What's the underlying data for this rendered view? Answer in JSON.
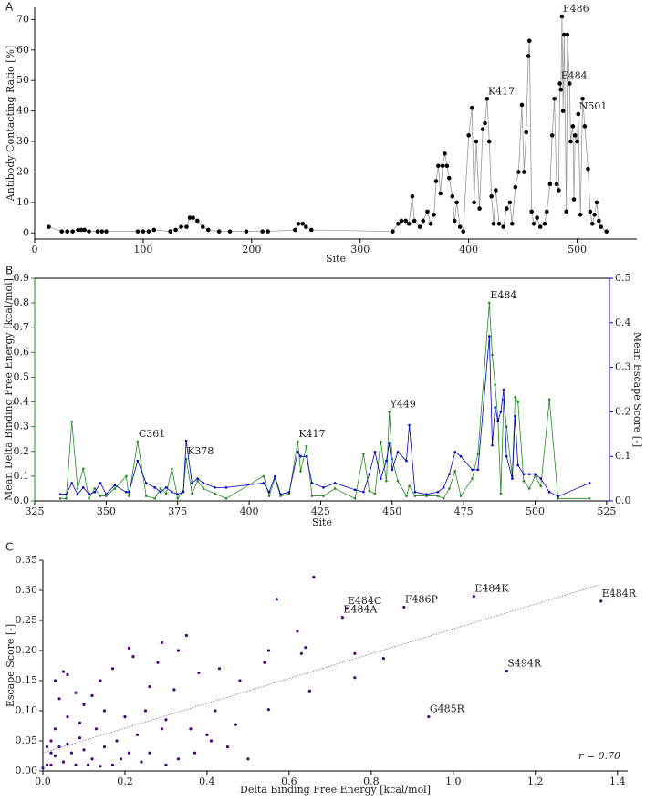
{
  "chart_data": [
    {
      "type": "line",
      "panel_label": "A",
      "x_label": "Site",
      "y_label": "Antibody Contacting Ratio [%]",
      "xlim": [
        0,
        555
      ],
      "ylim": [
        -2,
        74
      ],
      "xticks": [
        0,
        100,
        200,
        300,
        400,
        500
      ],
      "yticks": [
        0,
        10,
        20,
        30,
        40,
        50,
        60,
        70
      ],
      "color": "#000000",
      "line_color": "#999999",
      "x": [
        13,
        25,
        30,
        35,
        40,
        43,
        46,
        50,
        58,
        62,
        66,
        95,
        100,
        105,
        110,
        125,
        130,
        135,
        140,
        143,
        146,
        150,
        155,
        160,
        170,
        180,
        195,
        210,
        215,
        240,
        243,
        247,
        250,
        255,
        330,
        335,
        338,
        342,
        345,
        348,
        350,
        355,
        358,
        362,
        365,
        368,
        370,
        372,
        374,
        376,
        378,
        380,
        382,
        385,
        387,
        389,
        392,
        395,
        400,
        403,
        405,
        407,
        410,
        413,
        415,
        417,
        419,
        421,
        423,
        425,
        428,
        432,
        435,
        438,
        440,
        443,
        446,
        449,
        451,
        453,
        455,
        456,
        458,
        460,
        463,
        466,
        470,
        472,
        475,
        477,
        479,
        481,
        483,
        484,
        485,
        486,
        487,
        488,
        490,
        491,
        493,
        494,
        496,
        497,
        498,
        500,
        501,
        503,
        505,
        507,
        510,
        512,
        514,
        516,
        518,
        520,
        522,
        527
      ],
      "values": [
        2,
        0.5,
        0.5,
        0.5,
        1,
        1,
        1,
        0.5,
        0.5,
        0.5,
        0.5,
        0.5,
        0.5,
        0.5,
        1,
        0.5,
        1,
        2,
        2,
        5,
        5,
        4,
        2,
        1,
        0.5,
        0.5,
        0.5,
        0.5,
        0.5,
        1,
        3,
        3,
        2,
        1,
        0.5,
        3,
        4,
        4,
        3,
        12,
        4,
        2,
        4,
        7,
        3,
        6,
        17,
        22,
        13,
        22,
        26,
        22,
        18,
        12,
        4,
        10,
        2,
        0.5,
        32,
        41,
        10,
        30,
        8,
        34,
        36,
        44,
        30,
        12,
        3,
        14,
        3,
        2,
        8,
        10,
        3,
        15,
        20,
        42,
        20,
        33,
        58,
        63,
        7,
        3,
        5,
        2,
        3,
        7,
        16,
        32,
        44,
        16,
        14,
        49,
        47,
        71,
        40,
        65,
        7,
        65,
        49,
        30,
        35,
        11,
        32,
        30,
        39,
        6,
        44,
        35,
        21,
        7,
        3,
        6,
        10,
        4,
        2,
        0.5
      ],
      "annotations": [
        {
          "text": "F486",
          "x": 486,
          "y": 71
        },
        {
          "text": "E484",
          "x": 484,
          "y": 49
        },
        {
          "text": "K417",
          "x": 417,
          "y": 44
        },
        {
          "text": "N501",
          "x": 501,
          "y": 39
        }
      ]
    },
    {
      "type": "line",
      "panel_label": "B",
      "x_label": "Site",
      "y_label": "Mean Delta Binding Free Energy [kcal/mol]",
      "y2_label": "Mean Escape Score [-]",
      "xlim": [
        325,
        526
      ],
      "ylim": [
        0,
        0.9
      ],
      "y2lim": [
        0,
        0.5
      ],
      "xticks": [
        325,
        350,
        375,
        400,
        425,
        450,
        475,
        500,
        525
      ],
      "yticks": [
        {
          "value": 0,
          "label": "0.0"
        },
        0.1,
        0.2,
        0.3,
        0.4,
        0.5,
        0.6,
        0.7,
        0.8,
        0.9
      ],
      "y2ticks": [
        {
          "value": 0,
          "label": "0.0"
        },
        0.1,
        0.2,
        0.3,
        0.4,
        0.5
      ],
      "y_color": "#228b22",
      "y2_color": "#0000cd",
      "x": [
        334,
        336,
        338,
        340,
        342,
        344,
        346,
        348,
        350,
        353,
        357,
        358,
        361,
        364,
        367,
        369,
        371,
        373,
        375,
        377,
        378,
        380,
        382,
        384,
        388,
        392,
        405,
        407,
        409,
        411,
        414,
        417,
        418,
        420,
        422,
        426,
        430,
        437,
        440,
        442,
        444,
        446,
        448,
        449,
        450,
        452,
        455,
        456,
        458,
        462,
        466,
        468,
        470,
        472,
        474,
        478,
        480,
        484,
        485,
        486,
        487,
        488,
        489,
        490,
        492,
        493,
        494,
        496,
        498,
        500,
        502,
        505,
        508,
        519
      ],
      "series": [
        {
          "color": "#228b22",
          "values": [
            0.01,
            0.01,
            0.32,
            0.05,
            0.13,
            0.01,
            0.05,
            0.02,
            0.02,
            0.05,
            0.1,
            0.02,
            0.24,
            0.02,
            0.01,
            0.05,
            0.03,
            0.13,
            0.01,
            0.04,
            0.17,
            0.03,
            0.08,
            0.05,
            0.03,
            0.01,
            0.1,
            0.02,
            0.09,
            0.02,
            0.03,
            0.24,
            0.12,
            0.22,
            0.02,
            0.02,
            0.05,
            0.01,
            0.19,
            0.04,
            0.03,
            0.24,
            0.08,
            0.36,
            0.17,
            0.08,
            0.02,
            0.06,
            0.02,
            0.02,
            0.02,
            0.01,
            0.05,
            0.12,
            0.02,
            0.09,
            0.19,
            0.8,
            0.59,
            0.47,
            0.33,
            0.03,
            0.41,
            0.3,
            0.1,
            0.42,
            0.4,
            0.08,
            0.05,
            0.1,
            0.06,
            0.41,
            0.01,
            0.01
          ]
        },
        {
          "color": "#0000cd",
          "axis": "y2",
          "values": [
            0.015,
            0.015,
            0.04,
            0.015,
            0.03,
            0.015,
            0.02,
            0.04,
            0.015,
            0.035,
            0.02,
            0.02,
            0.09,
            0.04,
            0.03,
            0.02,
            0.03,
            0.02,
            0.015,
            0.02,
            0.135,
            0.04,
            0.05,
            0.04,
            0.03,
            0.03,
            0.04,
            0.02,
            0.055,
            0.015,
            0.02,
            0.11,
            0.1,
            0.1,
            0.04,
            0.03,
            0.04,
            0.025,
            0.02,
            0.06,
            0.11,
            0.05,
            0.09,
            0.13,
            0.07,
            0.11,
            0.09,
            0.17,
            0.02,
            0.015,
            0.02,
            0.03,
            0.06,
            0.11,
            0.1,
            0.07,
            0.07,
            0.37,
            0.125,
            0.21,
            0.18,
            0.2,
            0.25,
            0.1,
            0.05,
            0.19,
            0.08,
            0.06,
            0.06,
            0.06,
            0.05,
            0.02,
            0.01,
            0.04
          ]
        }
      ],
      "annotations": [
        {
          "text": "E484",
          "x": 484,
          "y": 0.8
        },
        {
          "text": "Y449",
          "x": 449,
          "y": 0.36
        },
        {
          "text": "K417",
          "x": 417,
          "y": 0.24
        },
        {
          "text": "K378",
          "x": 378,
          "y": 0.17
        },
        {
          "text": "C361",
          "x": 361,
          "y": 0.24
        }
      ]
    },
    {
      "type": "scatter",
      "panel_label": "C",
      "x_label": "Delta Binding Free Energy [kcal/mol]",
      "y_label": "Escape Score [-]",
      "xlim": [
        0,
        1.425
      ],
      "ylim": [
        0,
        0.35
      ],
      "xticks": [
        {
          "value": 0,
          "label": "0.0"
        },
        0.2,
        0.4,
        0.6,
        0.8,
        {
          "value": 1,
          "label": "1.0"
        },
        1.2,
        1.4
      ],
      "yticks": [
        {
          "value": 0,
          "label": "0.00"
        },
        0.05,
        {
          "value": 0.1,
          "label": "0.10"
        },
        0.15,
        {
          "value": 0.2,
          "label": "0.20"
        },
        0.25,
        {
          "value": 0.3,
          "label": "0.30"
        },
        0.35
      ],
      "color": "#4b0082",
      "stat_label": "r = 0.70",
      "fit": {
        "x": [
          0,
          1.36
        ],
        "y": [
          0.03,
          0.31
        ]
      },
      "x": [
        1.05,
        1.36,
        0.74,
        0.73,
        0.88,
        1.13,
        0.94,
        0.66,
        0.57,
        0.62,
        0.64,
        0.63,
        0.76,
        0.83,
        0.55,
        0.54,
        0.65,
        0.76,
        0.55,
        0.48,
        0.43,
        0.35,
        0.29,
        0.33,
        0.21,
        0.22,
        0.28,
        0.38,
        0.32,
        0.26,
        0.17,
        0.14,
        0.05,
        0.06,
        0.03,
        0.08,
        0.12,
        0.04,
        0.1,
        0.15,
        0.2,
        0.25,
        0.3,
        0.42,
        0.47,
        0.36,
        0.29,
        0.23,
        0.18,
        0.13,
        0.09,
        0.06,
        0.03,
        0.02,
        0.01,
        0.04,
        0.07,
        0.1,
        0.12,
        0.15,
        0.05,
        0.02,
        0.01,
        0.03,
        0.08,
        0.11,
        0.17,
        0.24,
        0.3,
        0.37,
        0.41,
        0.45,
        0.26,
        0.21,
        0,
        0.02,
        0.06,
        0.09,
        0.14,
        0.19,
        0.33,
        0.4,
        0.5
      ],
      "values": [
        0.29,
        0.282,
        0.27,
        0.255,
        0.272,
        0.166,
        0.09,
        0.322,
        0.285,
        0.232,
        0.205,
        0.195,
        0.195,
        0.187,
        0.2,
        0.18,
        0.133,
        0.155,
        0.102,
        0.15,
        0.17,
        0.225,
        0.213,
        0.2,
        0.204,
        0.19,
        0.18,
        0.163,
        0.135,
        0.14,
        0.17,
        0.15,
        0.165,
        0.16,
        0.15,
        0.13,
        0.125,
        0.12,
        0.11,
        0.1,
        0.09,
        0.1,
        0.085,
        0.1,
        0.077,
        0.07,
        0.07,
        0.06,
        0.05,
        0.07,
        0.08,
        0.09,
        0.07,
        0.05,
        0.04,
        0.04,
        0.03,
        0.035,
        0.02,
        0.04,
        0.015,
        0.01,
        0.01,
        0.025,
        0.01,
        0.01,
        0.01,
        0.015,
        0.01,
        0.03,
        0.05,
        0.04,
        0.03,
        0.03,
        0.005,
        0.03,
        0.045,
        0.055,
        0.008,
        0.02,
        0.02,
        0.06,
        0.02
      ],
      "annotations": [
        {
          "text": "E484K",
          "x": 1.05,
          "y": 0.29
        },
        {
          "text": "E484R",
          "x": 1.36,
          "y": 0.282
        },
        {
          "text": "E484C",
          "x": 0.74,
          "y": 0.27
        },
        {
          "text": "E484A",
          "x": 0.73,
          "y": 0.255
        },
        {
          "text": "F486P",
          "x": 0.88,
          "y": 0.272
        },
        {
          "text": "S494R",
          "x": 1.13,
          "y": 0.166
        },
        {
          "text": "G485R",
          "x": 0.94,
          "y": 0.09
        }
      ]
    }
  ]
}
